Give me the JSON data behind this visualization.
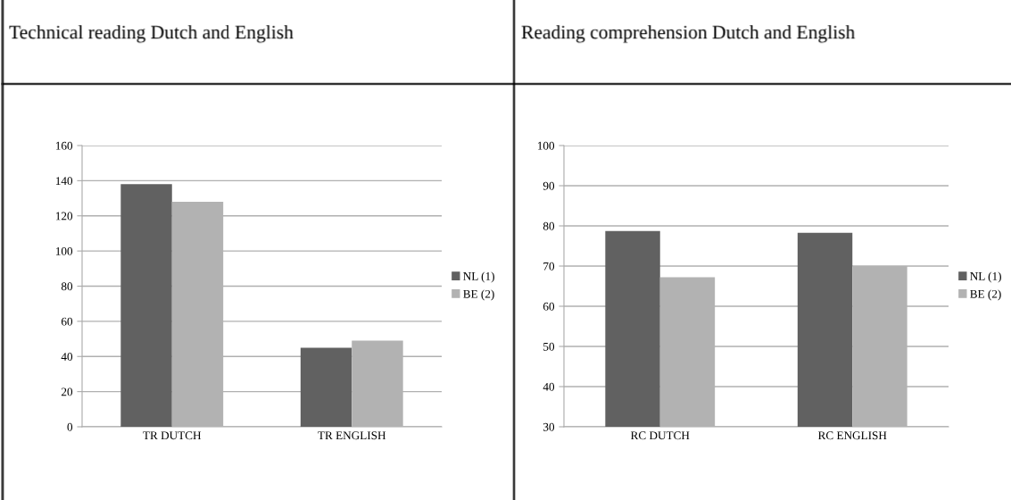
{
  "chart_data": [
    {
      "type": "bar",
      "title": "Technical reading Dutch and English",
      "categories": [
        "TR DUTCH",
        "TR ENGLISH"
      ],
      "series": [
        {
          "name": "NL (1)",
          "color": "#616161",
          "values": [
            138,
            45
          ]
        },
        {
          "name": "BE (2)",
          "color": "#b2b2b2",
          "values": [
            128,
            49
          ]
        }
      ],
      "ylim": [
        0,
        160
      ],
      "yticks": [
        0,
        20,
        40,
        60,
        80,
        100,
        120,
        140,
        160
      ],
      "grid": "y",
      "legend": "right"
    },
    {
      "type": "bar",
      "title": "Reading comprehension Dutch and English",
      "categories": [
        "RC DUTCH",
        "RC ENGLISH"
      ],
      "series": [
        {
          "name": "NL (1)",
          "color": "#616161",
          "values": [
            78.7,
            78.3
          ]
        },
        {
          "name": "BE (2)",
          "color": "#b2b2b2",
          "values": [
            67.2,
            70
          ]
        }
      ],
      "ylim": [
        30,
        100
      ],
      "yticks": [
        30,
        40,
        50,
        60,
        70,
        80,
        90,
        100
      ],
      "grid": "y",
      "legend": "right"
    }
  ]
}
